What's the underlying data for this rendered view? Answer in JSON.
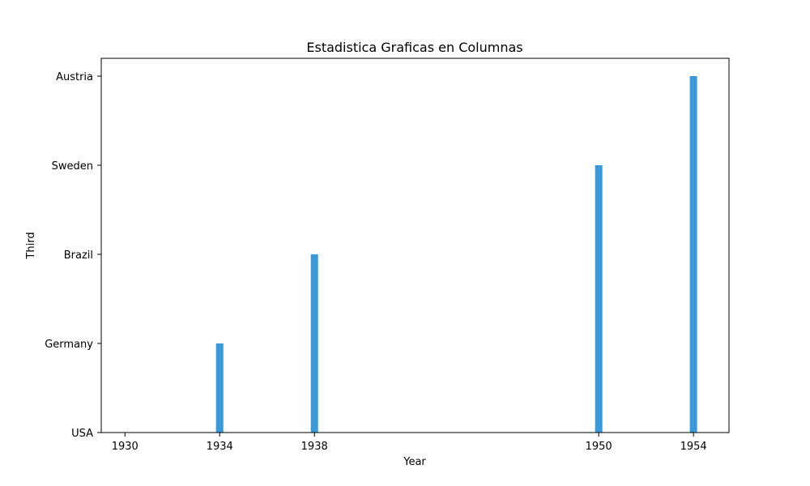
{
  "chart_data": {
    "type": "bar",
    "title": "Estadistica Graficas en Columnas",
    "xlabel": "Year",
    "ylabel": "Third",
    "x_ticks": [
      1930,
      1934,
      1938,
      1950,
      1954
    ],
    "xlim": [
      1929,
      1955.5
    ],
    "y_categories": [
      "USA",
      "Germany",
      "Brazil",
      "Sweden",
      "Austria"
    ],
    "ylim": [
      0,
      4.2
    ],
    "grid": false,
    "bar_color": "#3a9ad9",
    "points": [
      {
        "x": 1930,
        "y": "USA"
      },
      {
        "x": 1934,
        "y": "Germany"
      },
      {
        "x": 1938,
        "y": "Brazil"
      },
      {
        "x": 1950,
        "y": "Sweden"
      },
      {
        "x": 1954,
        "y": "Austria"
      }
    ]
  }
}
